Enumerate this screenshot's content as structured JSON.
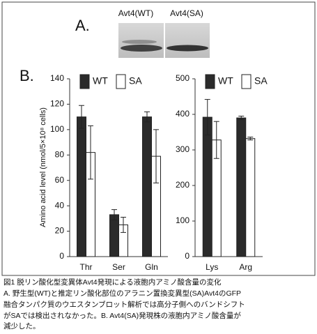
{
  "figure": {
    "panel_a": "A.",
    "panel_b": "B.",
    "blot_labels": [
      "Avt4(WT)",
      "Avt4(SA)"
    ],
    "caption": [
      "図1 脱リン酸化型変異体Avt4発現による液胞内アミノ酸含量の変化",
      "A. 野生型(WT)と推定リン酸化部位のアラニン置換変異型(SA)Avt4のGFP",
      "融合タンパク質のウエスタンブロット解析では高分子側へのバンドシフト",
      "がSAでは検出されなかった。B. Avt4(SA)発現株の液胞内アミノ酸含量が",
      "減少した。"
    ]
  },
  "chart_data": [
    {
      "type": "bar",
      "ylabel": "Amino acid level (nmol/5×10⁸ cells)",
      "categories": [
        "Thr",
        "Ser",
        "Gln"
      ],
      "series": [
        {
          "name": "WT",
          "color": "#2b2b2b",
          "values": [
            110,
            33,
            110
          ],
          "errors": [
            9,
            4,
            4
          ]
        },
        {
          "name": "SA",
          "color": "#ffffff",
          "values": [
            82,
            25,
            79
          ],
          "errors": [
            21,
            6,
            21
          ]
        }
      ],
      "ylim": [
        0,
        140
      ],
      "yticks": [
        0,
        20,
        40,
        60,
        80,
        100,
        120,
        140
      ]
    },
    {
      "type": "bar",
      "categories": [
        "Lys",
        "Arg"
      ],
      "series": [
        {
          "name": "WT",
          "color": "#2b2b2b",
          "values": [
            392,
            390
          ],
          "errors": [
            50,
            5
          ]
        },
        {
          "name": "SA",
          "color": "#ffffff",
          "values": [
            328,
            332
          ],
          "errors": [
            52,
            4
          ]
        }
      ],
      "ylim": [
        0,
        500
      ],
      "yticks": [
        0,
        100,
        200,
        300,
        400,
        500
      ]
    }
  ]
}
